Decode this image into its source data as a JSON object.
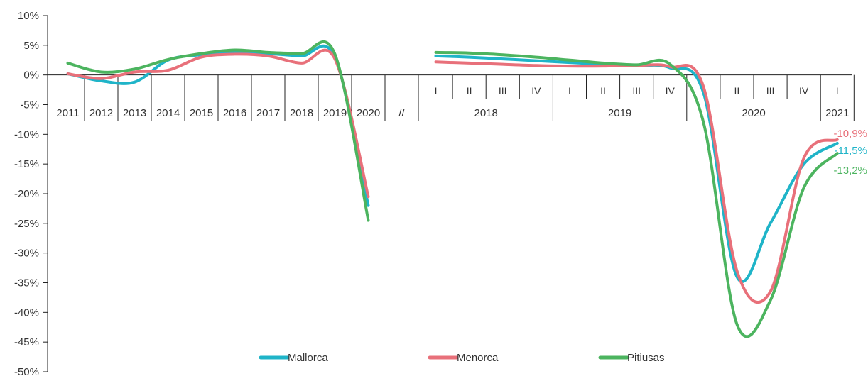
{
  "chart_data": {
    "type": "line",
    "ylim": [
      -50,
      10
    ],
    "y_ticks": [
      10,
      5,
      0,
      -5,
      -10,
      -15,
      -20,
      -25,
      -30,
      -35,
      -40,
      -45,
      -50
    ],
    "y_tick_labels": [
      "10%",
      "5%",
      "0%",
      "-5%",
      "-10%",
      "-15%",
      "-20%",
      "-25%",
      "-30%",
      "-35%",
      "-40%",
      "-45%",
      "-50%"
    ],
    "annual_categories": [
      "2011",
      "2012",
      "2013",
      "2014",
      "2015",
      "2016",
      "2017",
      "2018",
      "2019",
      "2020"
    ],
    "break_label": "//",
    "quarters": [
      "I",
      "II",
      "III",
      "IV",
      "I",
      "II",
      "III",
      "IV",
      "I",
      "II",
      "III",
      "IV",
      "I"
    ],
    "quarter_years": [
      "2018",
      "2019",
      "2020",
      "2021"
    ],
    "series": [
      {
        "name": "Mallorca",
        "color": "#1fb4c8",
        "annual": [
          0.2,
          -1.0,
          -1.2,
          2.5,
          3.4,
          3.8,
          3.6,
          3.2,
          3.0,
          -22.0
        ],
        "quarterly": [
          3.2,
          3.0,
          2.7,
          2.4,
          2.1,
          1.8,
          1.6,
          1.2,
          -3.0,
          -34.0,
          -25.0,
          -15.0,
          -11.5
        ]
      },
      {
        "name": "Menorca",
        "color": "#e8707a",
        "annual": [
          0.2,
          -0.6,
          0.5,
          0.8,
          3.0,
          3.5,
          3.2,
          2.0,
          2.7,
          -20.5
        ],
        "quarterly": [
          2.2,
          2.0,
          1.8,
          1.6,
          1.5,
          1.5,
          1.6,
          1.4,
          -2.0,
          -33.0,
          -36.5,
          -14.0,
          -10.9
        ]
      },
      {
        "name": "Pitiusas",
        "color": "#4cb45f",
        "annual": [
          2.0,
          0.5,
          1.0,
          2.6,
          3.6,
          4.2,
          3.8,
          3.6,
          3.5,
          -24.5
        ],
        "quarterly": [
          3.8,
          3.7,
          3.4,
          3.0,
          2.5,
          2.0,
          1.7,
          1.8,
          -8.0,
          -42.0,
          -38.0,
          -19.0,
          -13.2
        ]
      }
    ],
    "end_labels": [
      "-10,9%",
      "-11,5%",
      "-13,2%"
    ],
    "legend": [
      "Mallorca",
      "Menorca",
      "Pitiusas"
    ],
    "legend_position": "bottom"
  }
}
